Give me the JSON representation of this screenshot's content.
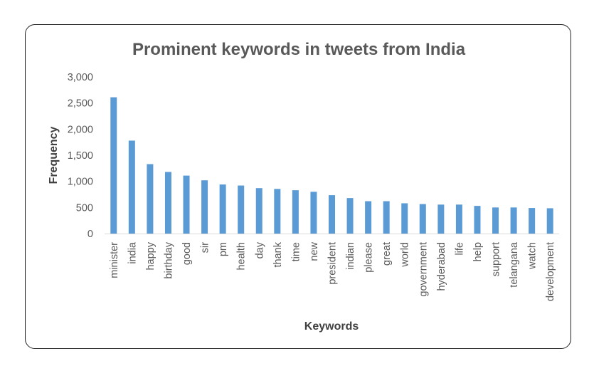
{
  "chart_data": {
    "type": "bar",
    "title": "Prominent keywords in tweets from India",
    "xlabel": "Keywords",
    "ylabel": "Frequency",
    "ylim": [
      0,
      3000
    ],
    "yticks": [
      "0",
      "500",
      "1,000",
      "1,500",
      "2,000",
      "2,500",
      "3,000"
    ],
    "categories": [
      "minister",
      "india",
      "happy",
      "birthday",
      "good",
      "sir",
      "pm",
      "health",
      "day",
      "thank",
      "time",
      "new",
      "president",
      "indian",
      "please",
      "great",
      "world",
      "government",
      "hyderabad",
      "life",
      "help",
      "support",
      "telangana",
      "watch",
      "development"
    ],
    "values": [
      2610,
      1780,
      1330,
      1180,
      1110,
      1020,
      940,
      920,
      870,
      855,
      830,
      800,
      735,
      680,
      620,
      620,
      580,
      565,
      555,
      555,
      530,
      500,
      500,
      490,
      485
    ],
    "bar_color": "#5B9BD5",
    "grid": false,
    "legend": "none"
  }
}
